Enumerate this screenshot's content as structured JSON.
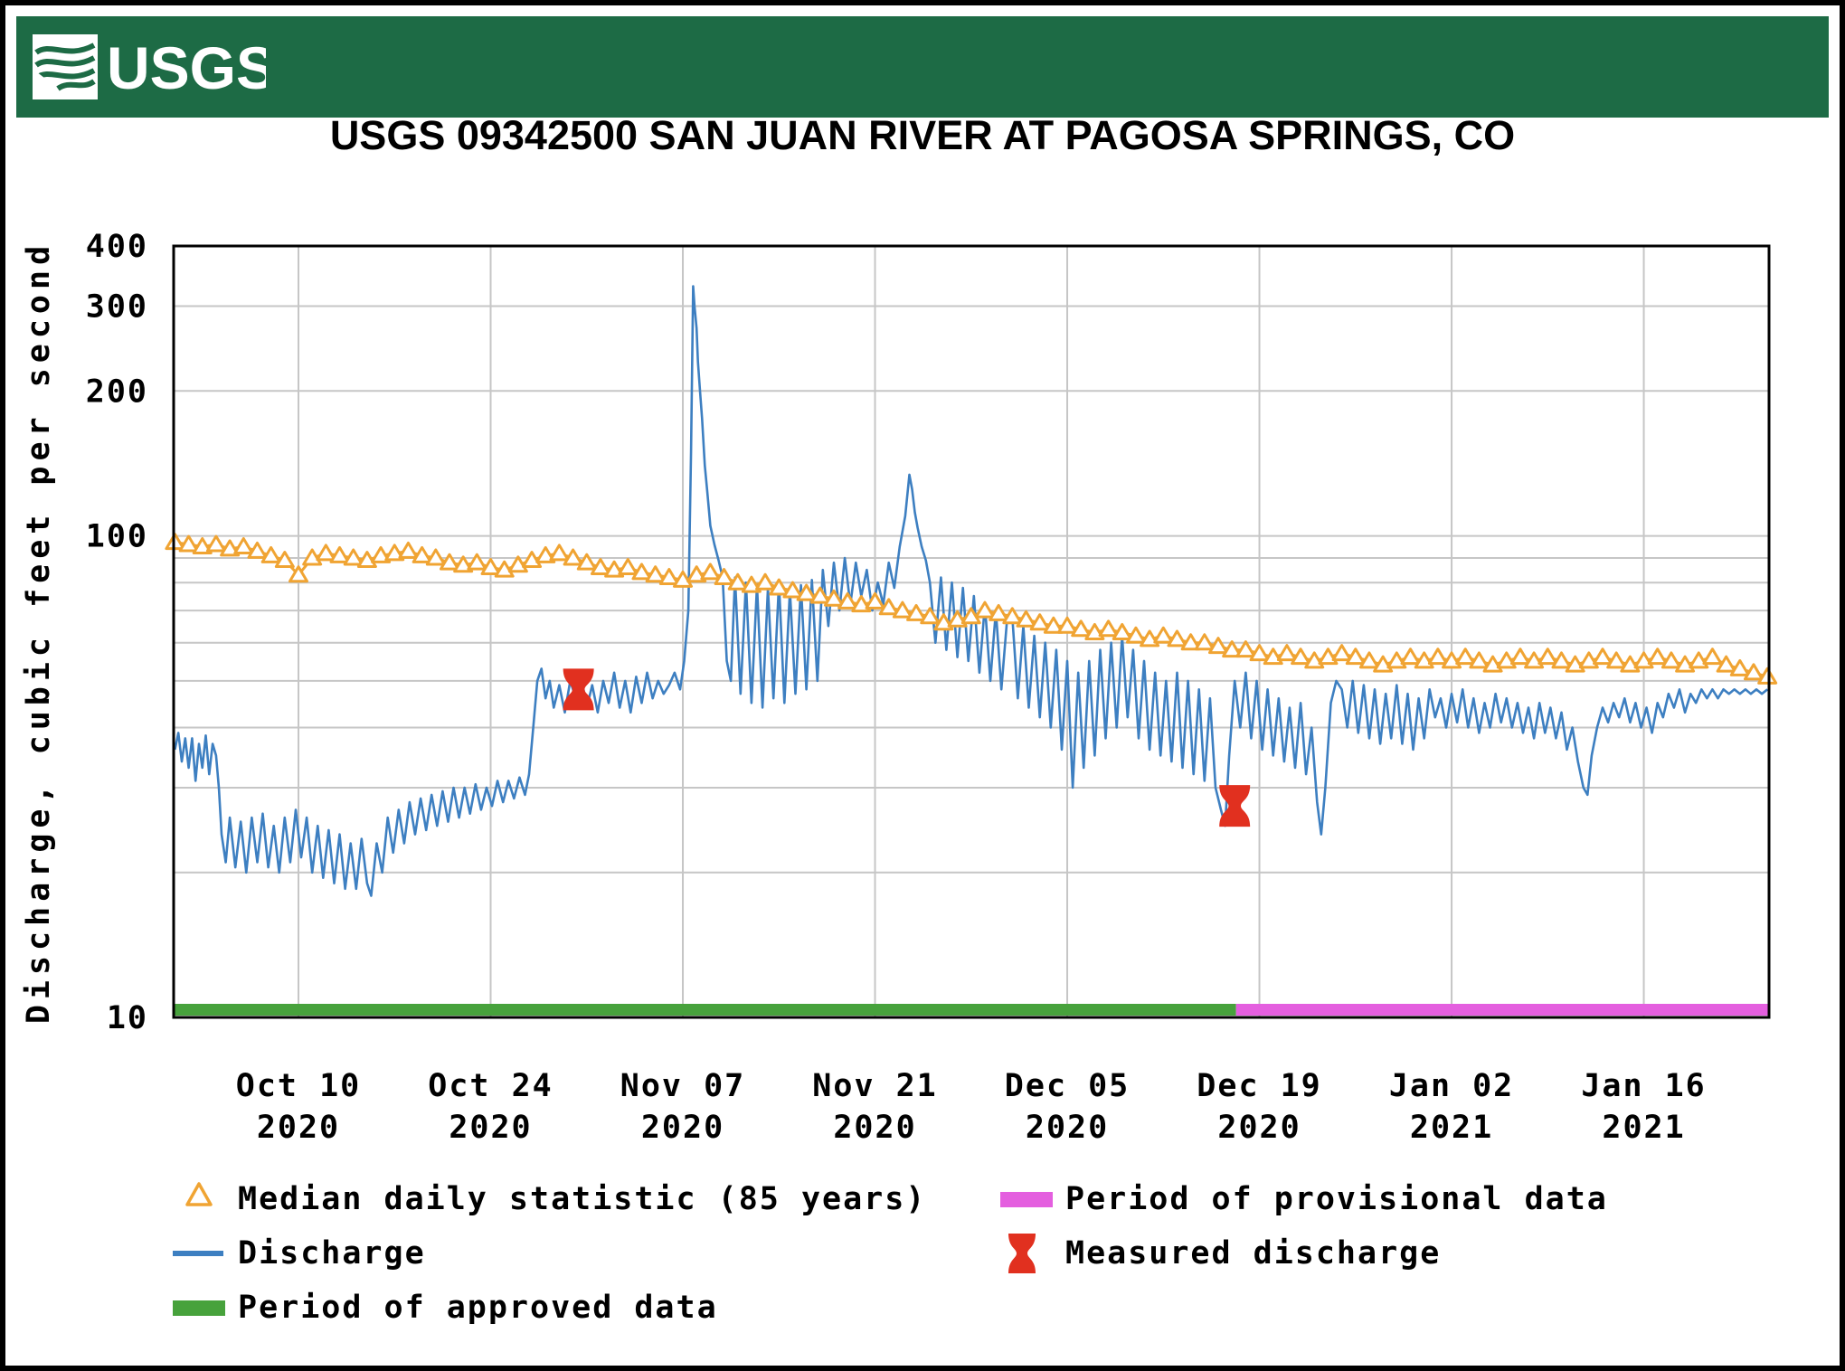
{
  "header": {
    "logo_text": "USGS"
  },
  "title": "USGS 09342500 SAN JUAN RIVER AT PAGOSA SPRINGS, CO",
  "colors": {
    "banner": "#1d6b45",
    "discharge": "#3d7fc1",
    "median": "#f0a433",
    "approved": "#47a23c",
    "provisional": "#e45fdf",
    "measured": "#e1301f",
    "grid": "#c6c6c6",
    "axis": "#000000"
  },
  "legend": {
    "items": [
      {
        "label": "Median daily statistic (85 years)",
        "symbol": "triangle"
      },
      {
        "label": "Discharge",
        "symbol": "line"
      },
      {
        "label": "Period of approved data",
        "symbol": "green-bar"
      },
      {
        "label": "Period of provisional data",
        "symbol": "pink-bar"
      },
      {
        "label": "Measured discharge",
        "symbol": "red-marker"
      }
    ]
  },
  "chart_data": {
    "type": "line",
    "title": "USGS 09342500 SAN JUAN RIVER AT PAGOSA SPRINGS, CO",
    "xlabel": "",
    "ylabel": "Discharge, cubic feet per second",
    "yscale": "log",
    "ylim": [
      10,
      400
    ],
    "y_tick_labels": [
      400,
      300,
      200,
      100,
      10
    ],
    "y_gridlines": [
      300,
      200,
      100,
      90,
      80,
      70,
      60,
      50,
      40,
      30,
      20
    ],
    "grid": true,
    "legend_position": "bottom",
    "x_note": "day 0 = Oct 1 2020; axis spans Oct 1 2020 to Jan 25 2021",
    "x_range_days": [
      0,
      116.2
    ],
    "x_ticks": [
      {
        "label": "Oct 10",
        "year": "2020",
        "day": 9
      },
      {
        "label": "Oct 24",
        "year": "2020",
        "day": 23
      },
      {
        "label": "Nov 07",
        "year": "2020",
        "day": 37
      },
      {
        "label": "Nov 21",
        "year": "2020",
        "day": 51
      },
      {
        "label": "Dec 05",
        "year": "2020",
        "day": 65
      },
      {
        "label": "Dec 19",
        "year": "2020",
        "day": 79
      },
      {
        "label": "Jan 02",
        "year": "2021",
        "day": 93
      },
      {
        "label": "Jan 16",
        "year": "2021",
        "day": 107
      }
    ],
    "approved_period": {
      "start_day": 0,
      "end_day": 77.3
    },
    "provisional_period": {
      "start_day": 77.3,
      "end_day": 116.2
    },
    "measured_discharge_points": [
      {
        "date": "Oct 30 2020",
        "day": 29.4,
        "value": 48
      },
      {
        "date": "Dec 17 2020",
        "day": 77.2,
        "value": 27.5
      }
    ],
    "median_daily_statistic": {
      "name": "Median daily statistic (85 years)",
      "start_day": 0,
      "values_per_day": [
        97,
        96,
        95,
        96,
        94,
        95,
        93,
        91,
        89,
        83,
        90,
        92,
        91,
        90,
        89,
        91,
        92,
        93,
        91,
        90,
        88,
        87,
        88,
        86,
        85,
        87,
        89,
        91,
        92,
        90,
        88,
        86,
        85,
        86,
        84,
        83,
        82,
        81,
        83,
        84,
        82,
        80,
        79,
        80,
        78,
        77,
        76,
        75,
        74,
        73,
        72,
        73,
        71,
        70,
        69,
        68,
        66,
        67,
        68,
        70,
        69,
        68,
        67,
        66,
        65,
        65,
        64,
        63,
        64,
        63,
        62,
        61,
        62,
        61,
        60,
        60,
        59,
        58,
        58,
        57,
        56,
        57,
        56,
        55,
        56,
        57,
        56,
        55,
        54,
        55,
        56,
        55,
        56,
        55,
        56,
        55,
        54,
        55,
        56,
        55,
        56,
        55,
        54,
        55,
        56,
        55,
        54,
        55,
        56,
        55,
        54,
        55,
        56,
        54,
        53,
        52,
        51
      ]
    },
    "discharge_series": {
      "name": "Discharge",
      "points": [
        [
          0,
          36
        ],
        [
          0.25,
          39
        ],
        [
          0.5,
          34
        ],
        [
          0.75,
          38
        ],
        [
          1,
          33
        ],
        [
          1.25,
          38
        ],
        [
          1.5,
          31
        ],
        [
          1.75,
          37
        ],
        [
          2,
          33
        ],
        [
          2.25,
          38.5
        ],
        [
          2.5,
          32
        ],
        [
          2.75,
          37
        ],
        [
          3,
          35
        ],
        [
          3.2,
          30
        ],
        [
          3.4,
          24
        ],
        [
          3.7,
          21
        ],
        [
          4,
          26
        ],
        [
          4.4,
          20.5
        ],
        [
          4.8,
          25.5
        ],
        [
          5.2,
          20
        ],
        [
          5.6,
          26
        ],
        [
          6,
          21
        ],
        [
          6.4,
          26.5
        ],
        [
          6.8,
          20.5
        ],
        [
          7.2,
          25
        ],
        [
          7.6,
          20
        ],
        [
          8,
          26
        ],
        [
          8.4,
          21
        ],
        [
          8.8,
          27
        ],
        [
          9.2,
          21.5
        ],
        [
          9.6,
          26
        ],
        [
          10,
          20
        ],
        [
          10.4,
          25
        ],
        [
          10.8,
          19.5
        ],
        [
          11.2,
          24.5
        ],
        [
          11.6,
          19
        ],
        [
          12,
          24
        ],
        [
          12.4,
          18.5
        ],
        [
          12.8,
          23
        ],
        [
          13.2,
          18.5
        ],
        [
          13.6,
          23.5
        ],
        [
          14,
          19
        ],
        [
          14.3,
          17.9
        ],
        [
          14.7,
          23
        ],
        [
          15.1,
          20
        ],
        [
          15.5,
          26
        ],
        [
          15.9,
          22
        ],
        [
          16.3,
          27
        ],
        [
          16.7,
          23
        ],
        [
          17.1,
          28
        ],
        [
          17.5,
          24
        ],
        [
          17.9,
          28.5
        ],
        [
          18.3,
          24.5
        ],
        [
          18.7,
          29
        ],
        [
          19.1,
          25
        ],
        [
          19.5,
          29.5
        ],
        [
          19.9,
          25.5
        ],
        [
          20.3,
          30
        ],
        [
          20.7,
          26
        ],
        [
          21.1,
          30
        ],
        [
          21.5,
          26.5
        ],
        [
          21.9,
          30.5
        ],
        [
          22.3,
          27
        ],
        [
          22.7,
          30
        ],
        [
          23.1,
          27.5
        ],
        [
          23.5,
          31
        ],
        [
          23.9,
          28
        ],
        [
          24.3,
          31
        ],
        [
          24.7,
          28.5
        ],
        [
          25.1,
          31.5
        ],
        [
          25.5,
          29
        ],
        [
          25.8,
          32
        ],
        [
          26.1,
          40
        ],
        [
          26.4,
          50
        ],
        [
          26.7,
          53
        ],
        [
          27,
          46
        ],
        [
          27.3,
          50
        ],
        [
          27.6,
          44
        ],
        [
          28,
          49
        ],
        [
          28.4,
          43
        ],
        [
          28.8,
          50
        ],
        [
          29.2,
          46
        ],
        [
          29.6,
          51
        ],
        [
          30,
          44
        ],
        [
          30.4,
          49
        ],
        [
          30.8,
          43
        ],
        [
          31.2,
          50
        ],
        [
          31.6,
          45
        ],
        [
          32,
          52
        ],
        [
          32.4,
          44
        ],
        [
          32.8,
          50
        ],
        [
          33.2,
          43
        ],
        [
          33.6,
          51
        ],
        [
          34,
          45
        ],
        [
          34.4,
          52
        ],
        [
          34.8,
          46
        ],
        [
          35.2,
          50
        ],
        [
          35.6,
          47
        ],
        [
          36,
          49
        ],
        [
          36.4,
          52
        ],
        [
          36.8,
          48
        ],
        [
          37.1,
          55
        ],
        [
          37.4,
          70
        ],
        [
          37.6,
          150
        ],
        [
          37.75,
          330
        ],
        [
          37.85,
          300
        ],
        [
          38,
          270
        ],
        [
          38.1,
          230
        ],
        [
          38.25,
          200
        ],
        [
          38.4,
          175
        ],
        [
          38.6,
          140
        ],
        [
          38.8,
          122
        ],
        [
          39,
          105
        ],
        [
          39.3,
          96
        ],
        [
          39.6,
          89
        ],
        [
          39.9,
          82
        ],
        [
          40.2,
          55
        ],
        [
          40.5,
          50
        ],
        [
          40.8,
          82
        ],
        [
          41.2,
          47
        ],
        [
          41.6,
          80
        ],
        [
          42,
          45
        ],
        [
          42.4,
          79
        ],
        [
          42.8,
          44
        ],
        [
          43.2,
          78
        ],
        [
          43.6,
          46
        ],
        [
          44,
          80
        ],
        [
          44.4,
          45
        ],
        [
          44.8,
          77
        ],
        [
          45.2,
          47
        ],
        [
          45.6,
          79
        ],
        [
          46,
          48
        ],
        [
          46.4,
          81
        ],
        [
          46.8,
          50
        ],
        [
          47.2,
          85
        ],
        [
          47.6,
          65
        ],
        [
          48,
          88
        ],
        [
          48.4,
          70
        ],
        [
          48.8,
          90
        ],
        [
          49.2,
          72
        ],
        [
          49.6,
          88
        ],
        [
          50,
          75
        ],
        [
          50.4,
          85
        ],
        [
          50.8,
          70
        ],
        [
          51.2,
          80
        ],
        [
          51.6,
          72
        ],
        [
          52,
          88
        ],
        [
          52.4,
          78
        ],
        [
          52.8,
          95
        ],
        [
          53.2,
          110
        ],
        [
          53.5,
          134
        ],
        [
          53.7,
          125
        ],
        [
          53.9,
          112
        ],
        [
          54.1,
          104
        ],
        [
          54.4,
          95
        ],
        [
          54.7,
          89
        ],
        [
          55,
          80
        ],
        [
          55.4,
          60
        ],
        [
          55.8,
          82
        ],
        [
          56.2,
          58
        ],
        [
          56.6,
          80
        ],
        [
          57,
          56
        ],
        [
          57.4,
          78
        ],
        [
          57.8,
          55
        ],
        [
          58.2,
          75
        ],
        [
          58.6,
          52
        ],
        [
          59,
          72
        ],
        [
          59.4,
          50
        ],
        [
          59.8,
          70
        ],
        [
          60.2,
          48
        ],
        [
          60.6,
          66
        ],
        [
          61,
          68
        ],
        [
          61.4,
          46
        ],
        [
          61.8,
          65
        ],
        [
          62.2,
          44
        ],
        [
          62.6,
          62
        ],
        [
          63,
          42
        ],
        [
          63.4,
          60
        ],
        [
          63.8,
          40
        ],
        [
          64.2,
          58
        ],
        [
          64.6,
          36
        ],
        [
          65,
          55
        ],
        [
          65.4,
          30
        ],
        [
          65.8,
          52
        ],
        [
          66.2,
          33
        ],
        [
          66.6,
          55
        ],
        [
          67,
          35
        ],
        [
          67.4,
          58
        ],
        [
          67.8,
          38
        ],
        [
          68.2,
          60
        ],
        [
          68.6,
          40
        ],
        [
          69,
          62
        ],
        [
          69.4,
          42
        ],
        [
          69.8,
          58
        ],
        [
          70.2,
          38
        ],
        [
          70.6,
          55
        ],
        [
          71,
          36
        ],
        [
          71.4,
          52
        ],
        [
          71.8,
          35
        ],
        [
          72.2,
          50
        ],
        [
          72.6,
          34
        ],
        [
          73,
          52
        ],
        [
          73.4,
          33
        ],
        [
          73.8,
          50
        ],
        [
          74.2,
          32
        ],
        [
          74.6,
          48
        ],
        [
          75,
          31
        ],
        [
          75.4,
          46
        ],
        [
          75.8,
          30
        ],
        [
          76.2,
          27
        ],
        [
          76.5,
          25
        ],
        [
          76.8,
          35
        ],
        [
          77.2,
          50
        ],
        [
          77.6,
          40
        ],
        [
          78,
          52
        ],
        [
          78.4,
          38
        ],
        [
          78.8,
          50
        ],
        [
          79.2,
          36
        ],
        [
          79.6,
          48
        ],
        [
          80,
          35
        ],
        [
          80.4,
          46
        ],
        [
          80.8,
          34
        ],
        [
          81.2,
          44
        ],
        [
          81.6,
          33
        ],
        [
          82,
          45
        ],
        [
          82.4,
          32
        ],
        [
          82.8,
          40
        ],
        [
          83.2,
          28
        ],
        [
          83.5,
          24
        ],
        [
          83.8,
          30
        ],
        [
          84.2,
          45
        ],
        [
          84.6,
          50
        ],
        [
          85,
          48
        ],
        [
          85.4,
          40
        ],
        [
          85.8,
          50
        ],
        [
          86.2,
          39
        ],
        [
          86.6,
          49
        ],
        [
          87,
          38
        ],
        [
          87.4,
          48
        ],
        [
          87.8,
          37
        ],
        [
          88.2,
          47
        ],
        [
          88.6,
          38
        ],
        [
          89,
          49
        ],
        [
          89.4,
          37
        ],
        [
          89.8,
          47
        ],
        [
          90.2,
          36
        ],
        [
          90.6,
          46
        ],
        [
          91,
          38
        ],
        [
          91.4,
          48
        ],
        [
          91.8,
          42
        ],
        [
          92.2,
          46
        ],
        [
          92.6,
          40
        ],
        [
          93,
          47
        ],
        [
          93.4,
          41
        ],
        [
          93.8,
          48
        ],
        [
          94.2,
          40
        ],
        [
          94.6,
          46
        ],
        [
          95,
          39
        ],
        [
          95.4,
          45
        ],
        [
          95.8,
          40
        ],
        [
          96.2,
          47
        ],
        [
          96.6,
          41
        ],
        [
          97,
          46
        ],
        [
          97.4,
          40
        ],
        [
          97.8,
          45
        ],
        [
          98.2,
          39
        ],
        [
          98.6,
          44
        ],
        [
          99,
          38
        ],
        [
          99.4,
          45
        ],
        [
          99.8,
          39
        ],
        [
          100.2,
          44
        ],
        [
          100.6,
          38
        ],
        [
          101,
          43
        ],
        [
          101.4,
          36
        ],
        [
          101.8,
          40
        ],
        [
          102.2,
          34
        ],
        [
          102.6,
          30
        ],
        [
          102.9,
          29
        ],
        [
          103.2,
          35
        ],
        [
          103.6,
          40
        ],
        [
          104,
          44
        ],
        [
          104.4,
          41
        ],
        [
          104.8,
          45
        ],
        [
          105.2,
          42
        ],
        [
          105.6,
          46
        ],
        [
          106,
          41
        ],
        [
          106.4,
          45
        ],
        [
          106.8,
          40
        ],
        [
          107.2,
          44
        ],
        [
          107.6,
          39
        ],
        [
          108,
          45
        ],
        [
          108.4,
          42
        ],
        [
          108.8,
          47
        ],
        [
          109.2,
          44
        ],
        [
          109.6,
          48
        ],
        [
          110,
          43
        ],
        [
          110.4,
          47
        ],
        [
          110.8,
          45
        ],
        [
          111.2,
          48
        ],
        [
          111.6,
          46
        ],
        [
          112,
          48
        ],
        [
          112.4,
          46
        ],
        [
          112.8,
          48
        ],
        [
          113.2,
          47
        ],
        [
          113.6,
          48
        ],
        [
          114,
          47
        ],
        [
          114.4,
          48
        ],
        [
          114.8,
          47
        ],
        [
          115.2,
          48
        ],
        [
          115.6,
          47
        ],
        [
          116,
          48
        ]
      ]
    }
  }
}
